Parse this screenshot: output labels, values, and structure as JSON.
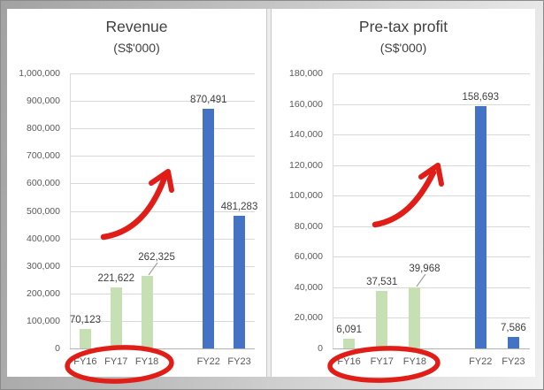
{
  "slide": {
    "description": "Two Excel bar charts side by side on a grey slide comparing pre-IPO years (FY16-FY18) with recent years (FY22-FY23)"
  },
  "chart_data": [
    {
      "type": "bar",
      "title": "Revenue",
      "subtitle": "(S$'000)",
      "categories": [
        "FY16",
        "FY17",
        "FY18",
        "FY22",
        "FY23"
      ],
      "values": [
        70123,
        221622,
        262325,
        870491,
        481283
      ],
      "value_labels": [
        "70,123",
        "221,622",
        "262,325",
        "870,491",
        "481,283"
      ],
      "bar_colors": [
        "#c6e0b4",
        "#c6e0b4",
        "#c6e0b4",
        "#4472c4",
        "#4472c4"
      ],
      "ylim": [
        0,
        1000000
      ],
      "ytick_step": 100000,
      "ytick_labels": [
        "0",
        "100,000",
        "200,000",
        "300,000",
        "400,000",
        "500,000",
        "600,000",
        "700,000",
        "800,000",
        "900,000",
        "1,000,000"
      ],
      "grid": true,
      "legend": "none",
      "x_gap_between": [
        "FY18",
        "FY22"
      ]
    },
    {
      "type": "bar",
      "title": "Pre-tax profit",
      "subtitle": "(S$'000)",
      "categories": [
        "FY16",
        "FY17",
        "FY18",
        "FY22",
        "FY23"
      ],
      "values": [
        6091,
        37531,
        39968,
        158693,
        7586
      ],
      "value_labels": [
        "6,091",
        "37,531",
        "39,968",
        "158,693",
        "7,586"
      ],
      "bar_colors": [
        "#c6e0b4",
        "#c6e0b4",
        "#c6e0b4",
        "#4472c4",
        "#4472c4"
      ],
      "ylim": [
        0,
        180000
      ],
      "ytick_step": 20000,
      "ytick_labels": [
        "0",
        "20,000",
        "40,000",
        "60,000",
        "80,000",
        "100,000",
        "120,000",
        "140,000",
        "160,000",
        "180,000"
      ],
      "grid": true,
      "legend": "none",
      "x_gap_between": [
        "FY18",
        "FY22"
      ]
    }
  ],
  "annotations": {
    "left_arrow": "red hand-drawn curved arrow pointing up-right (growth)",
    "left_ellipse": "red oval circling FY16 FY17 FY18 labels",
    "right_arrow": "red hand-drawn curved arrow pointing up-right (growth)",
    "right_ellipse": "red oval circling FY16 FY17 FY18 labels"
  },
  "colors": {
    "bar_green": "#c6e0b4",
    "bar_blue": "#4472c4",
    "annotation_red": "#e11d17",
    "gridline": "#d9d9d9",
    "axis_line": "#b3b3b3",
    "leader_line": "#a0a0a0",
    "panel_background": "#ffffff",
    "text_dark": "#3f3f3f",
    "text_axis": "#595959"
  }
}
